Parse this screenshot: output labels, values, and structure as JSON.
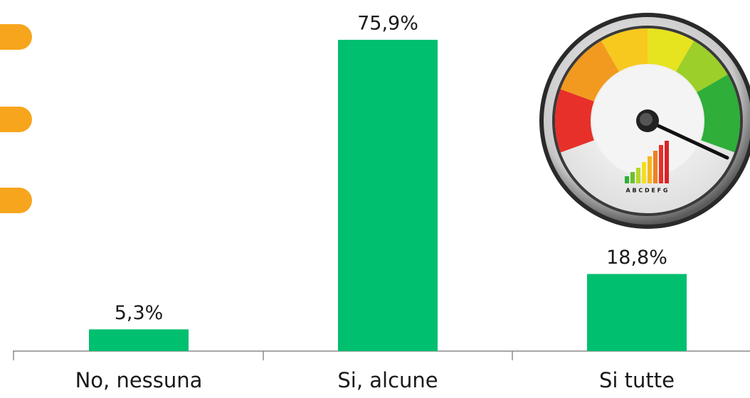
{
  "chart_data": {
    "type": "bar",
    "categories": [
      "No, nessuna",
      "Si, alcune",
      "Si tutte"
    ],
    "values": [
      5.3,
      75.9,
      18.8
    ],
    "value_labels": [
      "5,3%",
      "75,9%",
      "18,8%"
    ],
    "color": "#00bf6f"
  },
  "gauge_image": {
    "label": "A B C D E F G"
  }
}
